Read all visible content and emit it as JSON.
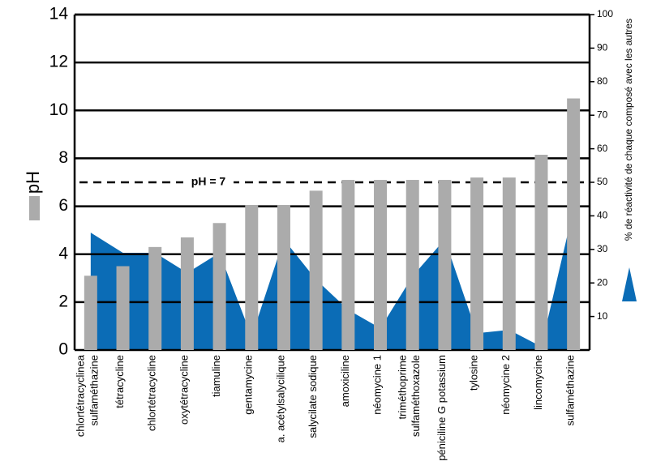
{
  "chart_data": {
    "type": "bar",
    "ylabel": "pH",
    "y2label": "% de réactivité de chaque composé avec les autres",
    "categories": [
      "chlortétracyclinea\nsulfaméthazine",
      "tétracycline",
      "chlortétracycline",
      "oxytétracycline",
      "tiamuline",
      "gentamycine",
      "a. acétylsalycilique",
      "salycilate sodique",
      "amoxiciline",
      "néomycine 1",
      "triméthoprime\nsulfaméthoxazole",
      "péniciline G potassium",
      "tylosine",
      "néomycine 2",
      "lincomycine",
      "sulfaméthazine"
    ],
    "series": [
      {
        "type": "bar",
        "color": "#ababab",
        "values": [
          3.1,
          3.5,
          4.3,
          4.7,
          5.3,
          6.05,
          6.05,
          6.65,
          7.1,
          7.1,
          7.1,
          7.1,
          7.2,
          7.2,
          8.15,
          10.5
        ]
      },
      {
        "type": "area",
        "axis": "y2",
        "color": "#0b6cb6",
        "values": [
          35,
          29,
          29,
          23,
          29,
          4,
          33,
          21,
          12,
          6.5,
          22,
          33,
          5,
          6,
          1,
          42
        ]
      }
    ],
    "ylim": [
      0,
      14
    ],
    "yticks": [
      0,
      2,
      4,
      6,
      8,
      10,
      12,
      14
    ],
    "y2lim": [
      0,
      100
    ],
    "y2ticks": [
      10,
      20,
      30,
      40,
      50,
      60,
      70,
      80,
      90,
      100
    ],
    "grid": true,
    "annotation": {
      "text": "pH = 7",
      "y": 7
    }
  }
}
